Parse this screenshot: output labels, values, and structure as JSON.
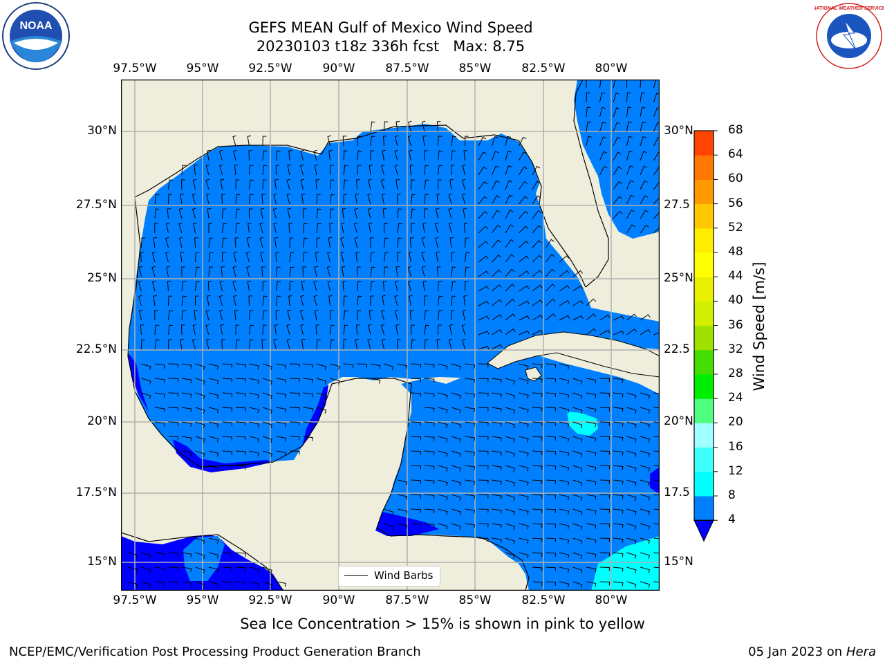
{
  "title_line1": "GEFS MEAN Gulf of Mexico Wind Speed",
  "title_line2": "20230103 t18z 336h fcst   Max: 8.75",
  "lon_ticks": [
    "97.5°W",
    "95°W",
    "92.5°W",
    "90°W",
    "87.5°W",
    "85°W",
    "82.5°W",
    "80°W"
  ],
  "lat_ticks_left": [
    "30°N",
    "27.5°N",
    "25°N",
    "22.5°N",
    "20°N",
    "17.5°N",
    "15°N"
  ],
  "lat_ticks_right": [
    "30°N",
    "27.5",
    "25°N",
    "22.5",
    "20°N",
    "17.5",
    "15°N"
  ],
  "colorbar": {
    "label": "Wind Speed [m/s]",
    "ticks": [
      "68",
      "64",
      "60",
      "56",
      "52",
      "48",
      "44",
      "40",
      "36",
      "32",
      "28",
      "24",
      "20",
      "16",
      "12",
      "8",
      "4"
    ],
    "colors": [
      "#0000ff",
      "#0080ff",
      "#00ffff",
      "#40ffff",
      "#a0ffff",
      "#50ff80",
      "#00ee00",
      "#44dd00",
      "#a0e000",
      "#d0f000",
      "#e8f000",
      "#ffff00",
      "#ffee00",
      "#ffc800",
      "#ff9900",
      "#ff7700",
      "#ff4400",
      "#ff2200",
      "#ff0000"
    ]
  },
  "legend_label": "Wind Barbs",
  "footer_note": "Sea Ice Concentration > 15% is shown in pink to yellow",
  "credits": "NCEP/EMC/Verification Post Processing Product Generation Branch",
  "date_text": "05 Jan 2023 on ",
  "host_text": "Hera",
  "map_colors": {
    "land": "#efeedd",
    "ocean_4_8": "#0080ff",
    "ocean_lt4": "#0000ff",
    "ocean_8_12": "#00ffff",
    "grid": "#b0b0b0"
  },
  "logos": {
    "left": "NOAA",
    "right": "NATIONAL WEATHER SERVICE"
  }
}
